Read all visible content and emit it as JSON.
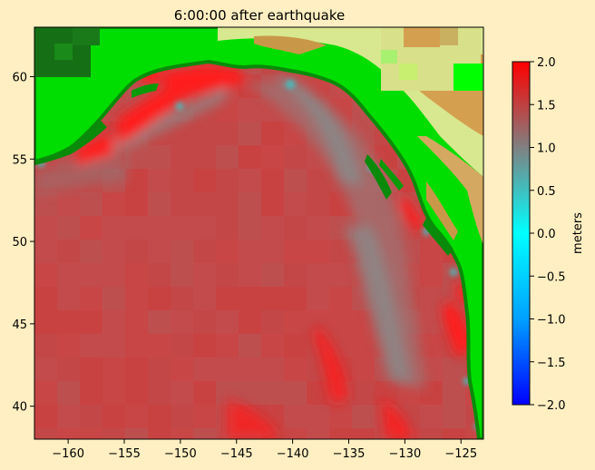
{
  "chart_data": {
    "type": "heatmap",
    "title": "6:00:00 after earthquake",
    "xlabel": "",
    "ylabel": "",
    "xlim": [
      -163,
      -123
    ],
    "ylim": [
      38,
      63
    ],
    "x_ticks": [
      -160,
      -155,
      -150,
      -145,
      -140,
      -135,
      -130,
      -125
    ],
    "x_tick_labels": [
      "−160",
      "−155",
      "−150",
      "−145",
      "−140",
      "−135",
      "−130",
      "−125"
    ],
    "y_ticks": [
      40,
      45,
      50,
      55,
      60
    ],
    "y_tick_labels": [
      "40",
      "45",
      "50",
      "55",
      "60"
    ],
    "colorbar": {
      "label": "meters",
      "range": [
        -2.0,
        2.0
      ],
      "ticks": [
        -2.0,
        -1.5,
        -1.0,
        -0.5,
        0.0,
        0.5,
        1.0,
        1.5,
        2.0
      ],
      "tick_labels": [
        "−2.0",
        "−1.5",
        "−1.0",
        "−0.5",
        "0.0",
        "0.5",
        "1.0",
        "1.5",
        "2.0"
      ],
      "colors": [
        "#0000ff",
        "#00a0ff",
        "#00ffff",
        "#808080",
        "#ff0000"
      ]
    },
    "surface_height_description": {
      "open_ocean_m": 1.4,
      "coastal_peak_m": 2.0,
      "near_coast_dip_m": 0.5
    },
    "land_colors": [
      "#1a7a1a",
      "#00e600",
      "#c8e68c",
      "#d4a050"
    ]
  }
}
